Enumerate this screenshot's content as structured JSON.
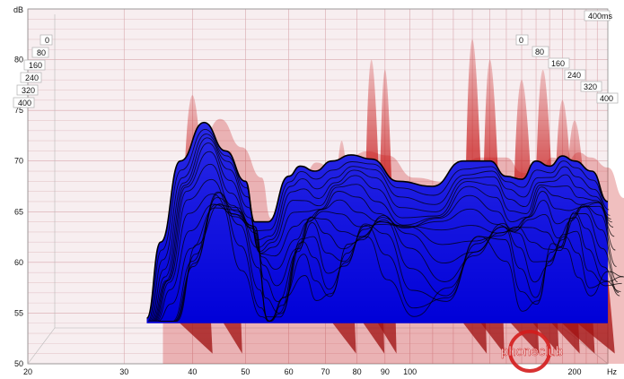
{
  "chart_data": {
    "type": "area",
    "title": "",
    "ylabel": "dB",
    "y_ticks": [
      50,
      55,
      60,
      65,
      70,
      75,
      80
    ],
    "ylim": [
      50,
      85
    ],
    "x_scale": "log",
    "x_ticks": [
      "20",
      "30",
      "40",
      "50",
      "60",
      "70",
      "80",
      "90",
      "100",
      "200"
    ],
    "x_unit": "Hz",
    "time_axis_label": "400ms",
    "time_ticks_left": [
      "0",
      "80",
      "160",
      "240",
      "320",
      "400"
    ],
    "time_ticks_right": [
      "0",
      "80",
      "160",
      "240",
      "320",
      "400"
    ],
    "x": [
      33,
      35,
      38,
      42,
      46,
      50,
      52,
      55,
      60,
      63,
      67,
      72,
      78,
      85,
      95,
      110,
      125,
      140,
      150,
      160,
      170,
      180,
      190,
      200,
      215,
      230
    ],
    "series": [
      {
        "values": [
          54.5,
          62,
          70,
          73.8,
          71,
          68,
          64,
          64,
          68.5,
          69.5,
          69,
          70,
          70.6,
          70.2,
          68,
          67.5,
          70,
          70,
          68.5,
          68.2,
          70,
          69.5,
          70.5,
          70,
          69,
          66
        ]
      }
    ],
    "colors": {
      "resonance": "#c81818",
      "waterfall": "#0000ee",
      "grid": "#d9a8ad",
      "background": "#f7eef0"
    }
  },
  "watermark": "phoneclub"
}
